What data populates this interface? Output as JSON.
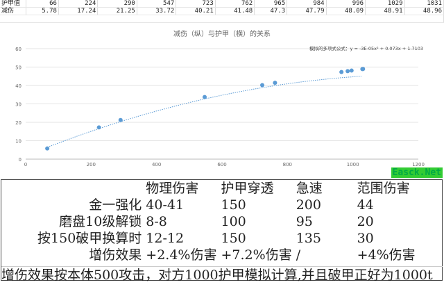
{
  "top_table": {
    "row1_label": "护甲值",
    "row2_label": "减伤",
    "armor": [
      "66",
      "224",
      "290",
      "547",
      "723",
      "762",
      "965",
      "984",
      "996",
      "1029",
      "1031"
    ],
    "reduction": [
      "5.78",
      "17.24",
      "21.25",
      "33.72",
      "40.21",
      "41.48",
      "47.3",
      "47.79",
      "48.09",
      "48.91",
      "48.96"
    ]
  },
  "chart_data": {
    "type": "scatter",
    "title": "减伤（纵）与护甲（横）的关系",
    "x": [
      66,
      224,
      290,
      547,
      723,
      762,
      965,
      984,
      996,
      1029,
      1031
    ],
    "y": [
      5.78,
      17.24,
      21.25,
      33.72,
      40.21,
      41.48,
      47.3,
      47.79,
      48.09,
      48.91,
      48.96
    ],
    "xlim": [
      0,
      1200
    ],
    "ylim": [
      0,
      60
    ],
    "xticks": [
      "0",
      "200",
      "400",
      "600",
      "800",
      "1000",
      "1200"
    ],
    "yticks": [
      "0",
      "10",
      "20",
      "30",
      "40",
      "50",
      "60"
    ],
    "trendline": {
      "type": "polynomial",
      "label": "模拟的多项式公式：y = -3E-05x² + 0.073x + 1.7103",
      "a": -3e-05,
      "b": 0.073,
      "c": 1.7103
    },
    "grid": "horizontal",
    "point_color": "#5b9bd5"
  },
  "bottom_table": {
    "headers": [
      "",
      "物理伤害",
      "护甲穿透",
      "急速",
      "范围伤害"
    ],
    "rows": [
      [
        "金一强化",
        "40-41",
        "150",
        "200",
        "44"
      ],
      [
        "磨盘10级解锁",
        "8-8",
        "100",
        "95",
        "20"
      ],
      [
        "按150破甲换算时",
        "12-12",
        "150",
        "135",
        "30"
      ],
      [
        "增伤效果",
        "+2.4%伤害",
        "+7.2%伤害",
        "/",
        "+4%伤害"
      ]
    ],
    "footnote": "增伤效果按本体500攻击，对方1000护甲模拟计算,并且破甲正好为1000t"
  },
  "watermark": "Easck.Net"
}
